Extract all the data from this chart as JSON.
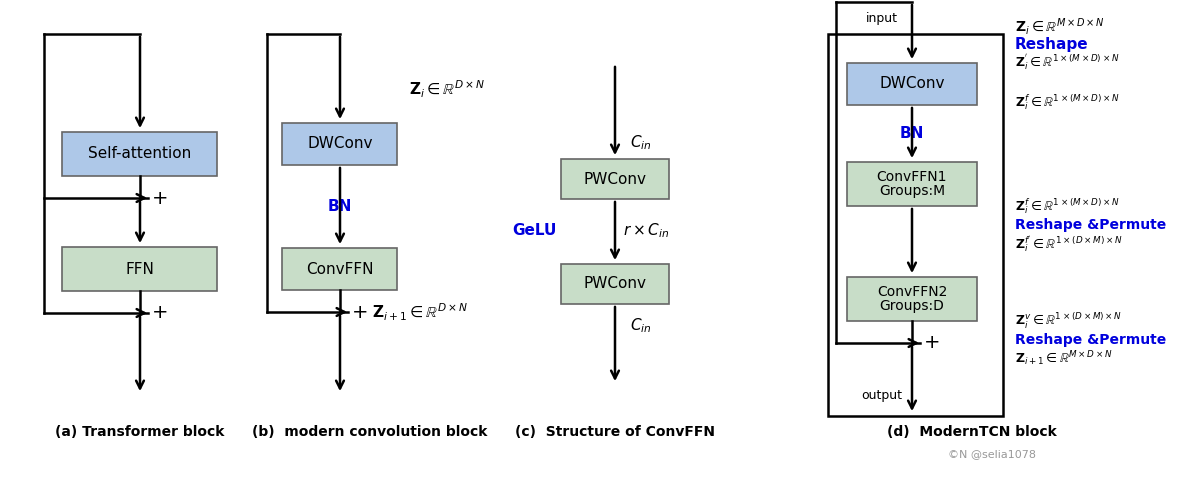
{
  "bg": "#ffffff",
  "blue_box": "#aec8e8",
  "green_box": "#c8ddc8",
  "blue_text": "#0000dd",
  "black": "#000000",
  "figw": 11.95,
  "figh": 4.84,
  "dpi": 100,
  "caption_a": "(a) Transformer block",
  "caption_b": "(b)  modern convolution block",
  "caption_c": "(c)  Structure of ConvFFN",
  "caption_d": "(d)  ModernTCN block",
  "watermark": "©N @selia1078"
}
